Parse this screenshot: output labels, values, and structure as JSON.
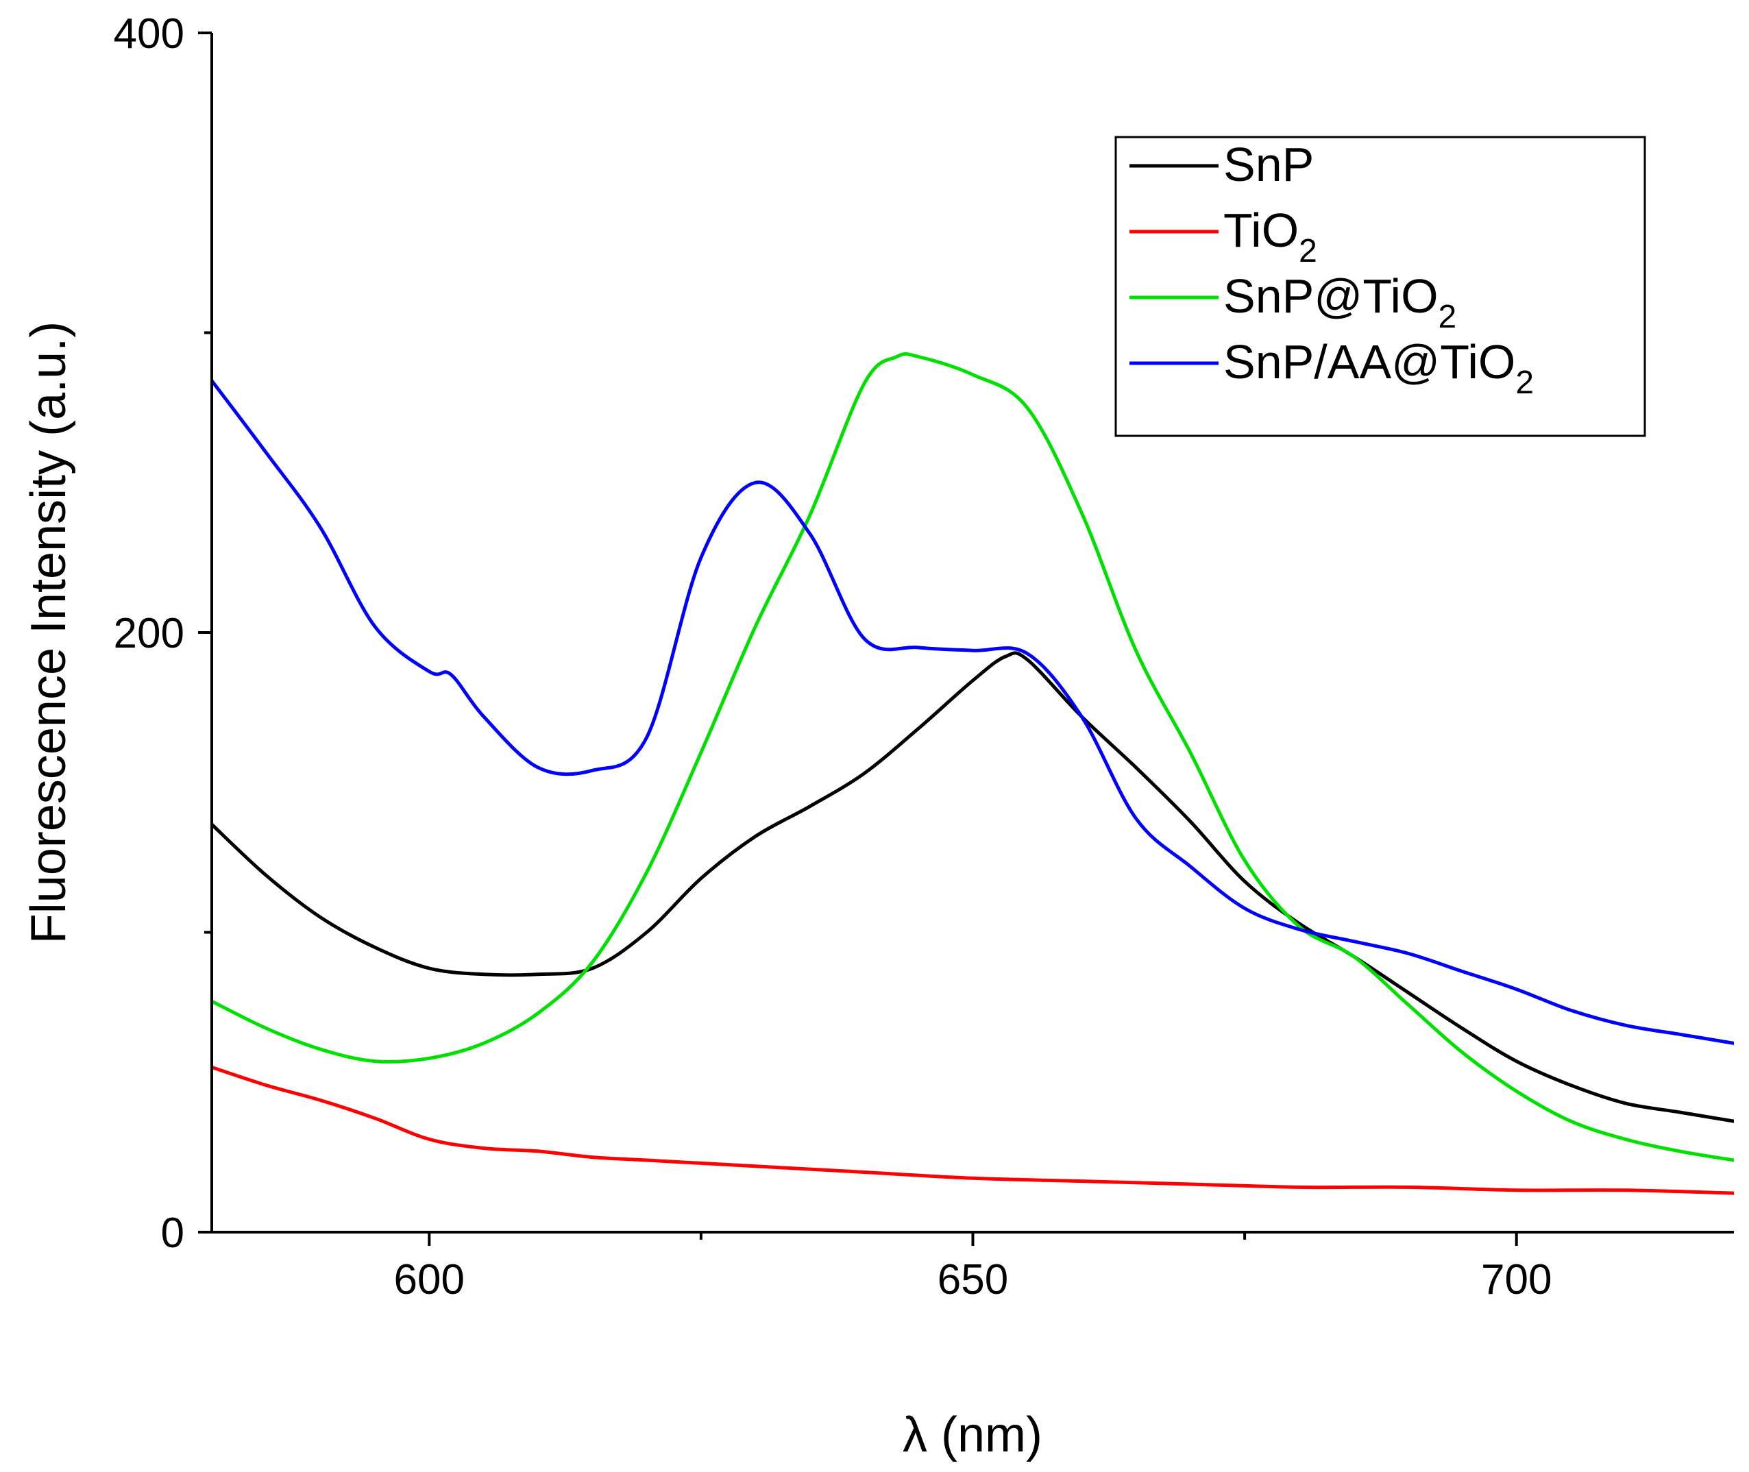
{
  "chart_data": {
    "type": "line",
    "xlabel": "λ (nm)",
    "ylabel": "Fluorescence Intensity (a.u.)",
    "xlim": [
      580,
      720
    ],
    "ylim": [
      0,
      400
    ],
    "x_ticks": [
      600,
      650,
      700
    ],
    "x_ticks_minor": [
      625,
      675
    ],
    "y_ticks": [
      0,
      200,
      400
    ],
    "y_ticks_minor": [
      100,
      300
    ],
    "grid": false,
    "legend_position": "top-right",
    "series": [
      {
        "name": "SnP",
        "name_base": "SnP",
        "name_sub": "",
        "color": "#000000",
        "x": [
          580,
          585,
          590,
          595,
          600,
          605,
          610,
          615,
          620,
          625,
          630,
          635,
          640,
          645,
          650,
          653,
          655,
          660,
          665,
          670,
          675,
          680,
          685,
          690,
          695,
          700,
          705,
          710,
          715,
          720
        ],
        "y": [
          136,
          119,
          105,
          95,
          88,
          86,
          86,
          88,
          100,
          118,
          132,
          142,
          153,
          168,
          184,
          192,
          191,
          172,
          155,
          137,
          117,
          103,
          92,
          80,
          68,
          57,
          49,
          43,
          40,
          37
        ]
      },
      {
        "name": "TiO2",
        "name_base": "TiO",
        "name_sub": "2",
        "color": "#ff0000",
        "x": [
          580,
          585,
          590,
          595,
          600,
          605,
          610,
          615,
          620,
          625,
          630,
          635,
          640,
          650,
          660,
          670,
          680,
          690,
          700,
          710,
          720
        ],
        "y": [
          55,
          49,
          44,
          38,
          31,
          28,
          27,
          25,
          24,
          23,
          22,
          21,
          20,
          18,
          17,
          16,
          15,
          15,
          14,
          14,
          13
        ]
      },
      {
        "name": "SnP@TiO2",
        "name_base": "SnP@TiO",
        "name_sub": "2",
        "color": "#00e000",
        "x": [
          580,
          585,
          590,
          595,
          600,
          605,
          610,
          615,
          620,
          625,
          630,
          635,
          640,
          643,
          645,
          650,
          655,
          660,
          665,
          670,
          675,
          680,
          685,
          690,
          695,
          700,
          705,
          710,
          715,
          720
        ],
        "y": [
          77,
          68,
          61,
          57,
          58,
          63,
          73,
          90,
          120,
          160,
          202,
          239,
          283,
          292,
          292,
          286,
          275,
          240,
          194,
          160,
          124,
          102,
          92,
          76,
          60,
          47,
          37,
          31,
          27,
          24
        ]
      },
      {
        "name": "SnP/AA@TiO2",
        "name_base": "SnP/AA@TiO",
        "name_sub": "2",
        "color": "#0000ff",
        "x": [
          580,
          585,
          590,
          595,
          600,
          602,
          605,
          610,
          615,
          620,
          625,
          630,
          635,
          640,
          645,
          650,
          655,
          660,
          665,
          670,
          675,
          680,
          685,
          690,
          695,
          700,
          705,
          710,
          715,
          720
        ],
        "y": [
          284,
          260,
          235,
          202,
          187,
          186,
          172,
          155,
          154,
          165,
          225,
          250,
          233,
          198,
          195,
          194,
          193,
          172,
          138,
          122,
          108,
          101,
          97,
          93,
          87,
          81,
          74,
          69,
          66,
          63
        ]
      }
    ]
  }
}
